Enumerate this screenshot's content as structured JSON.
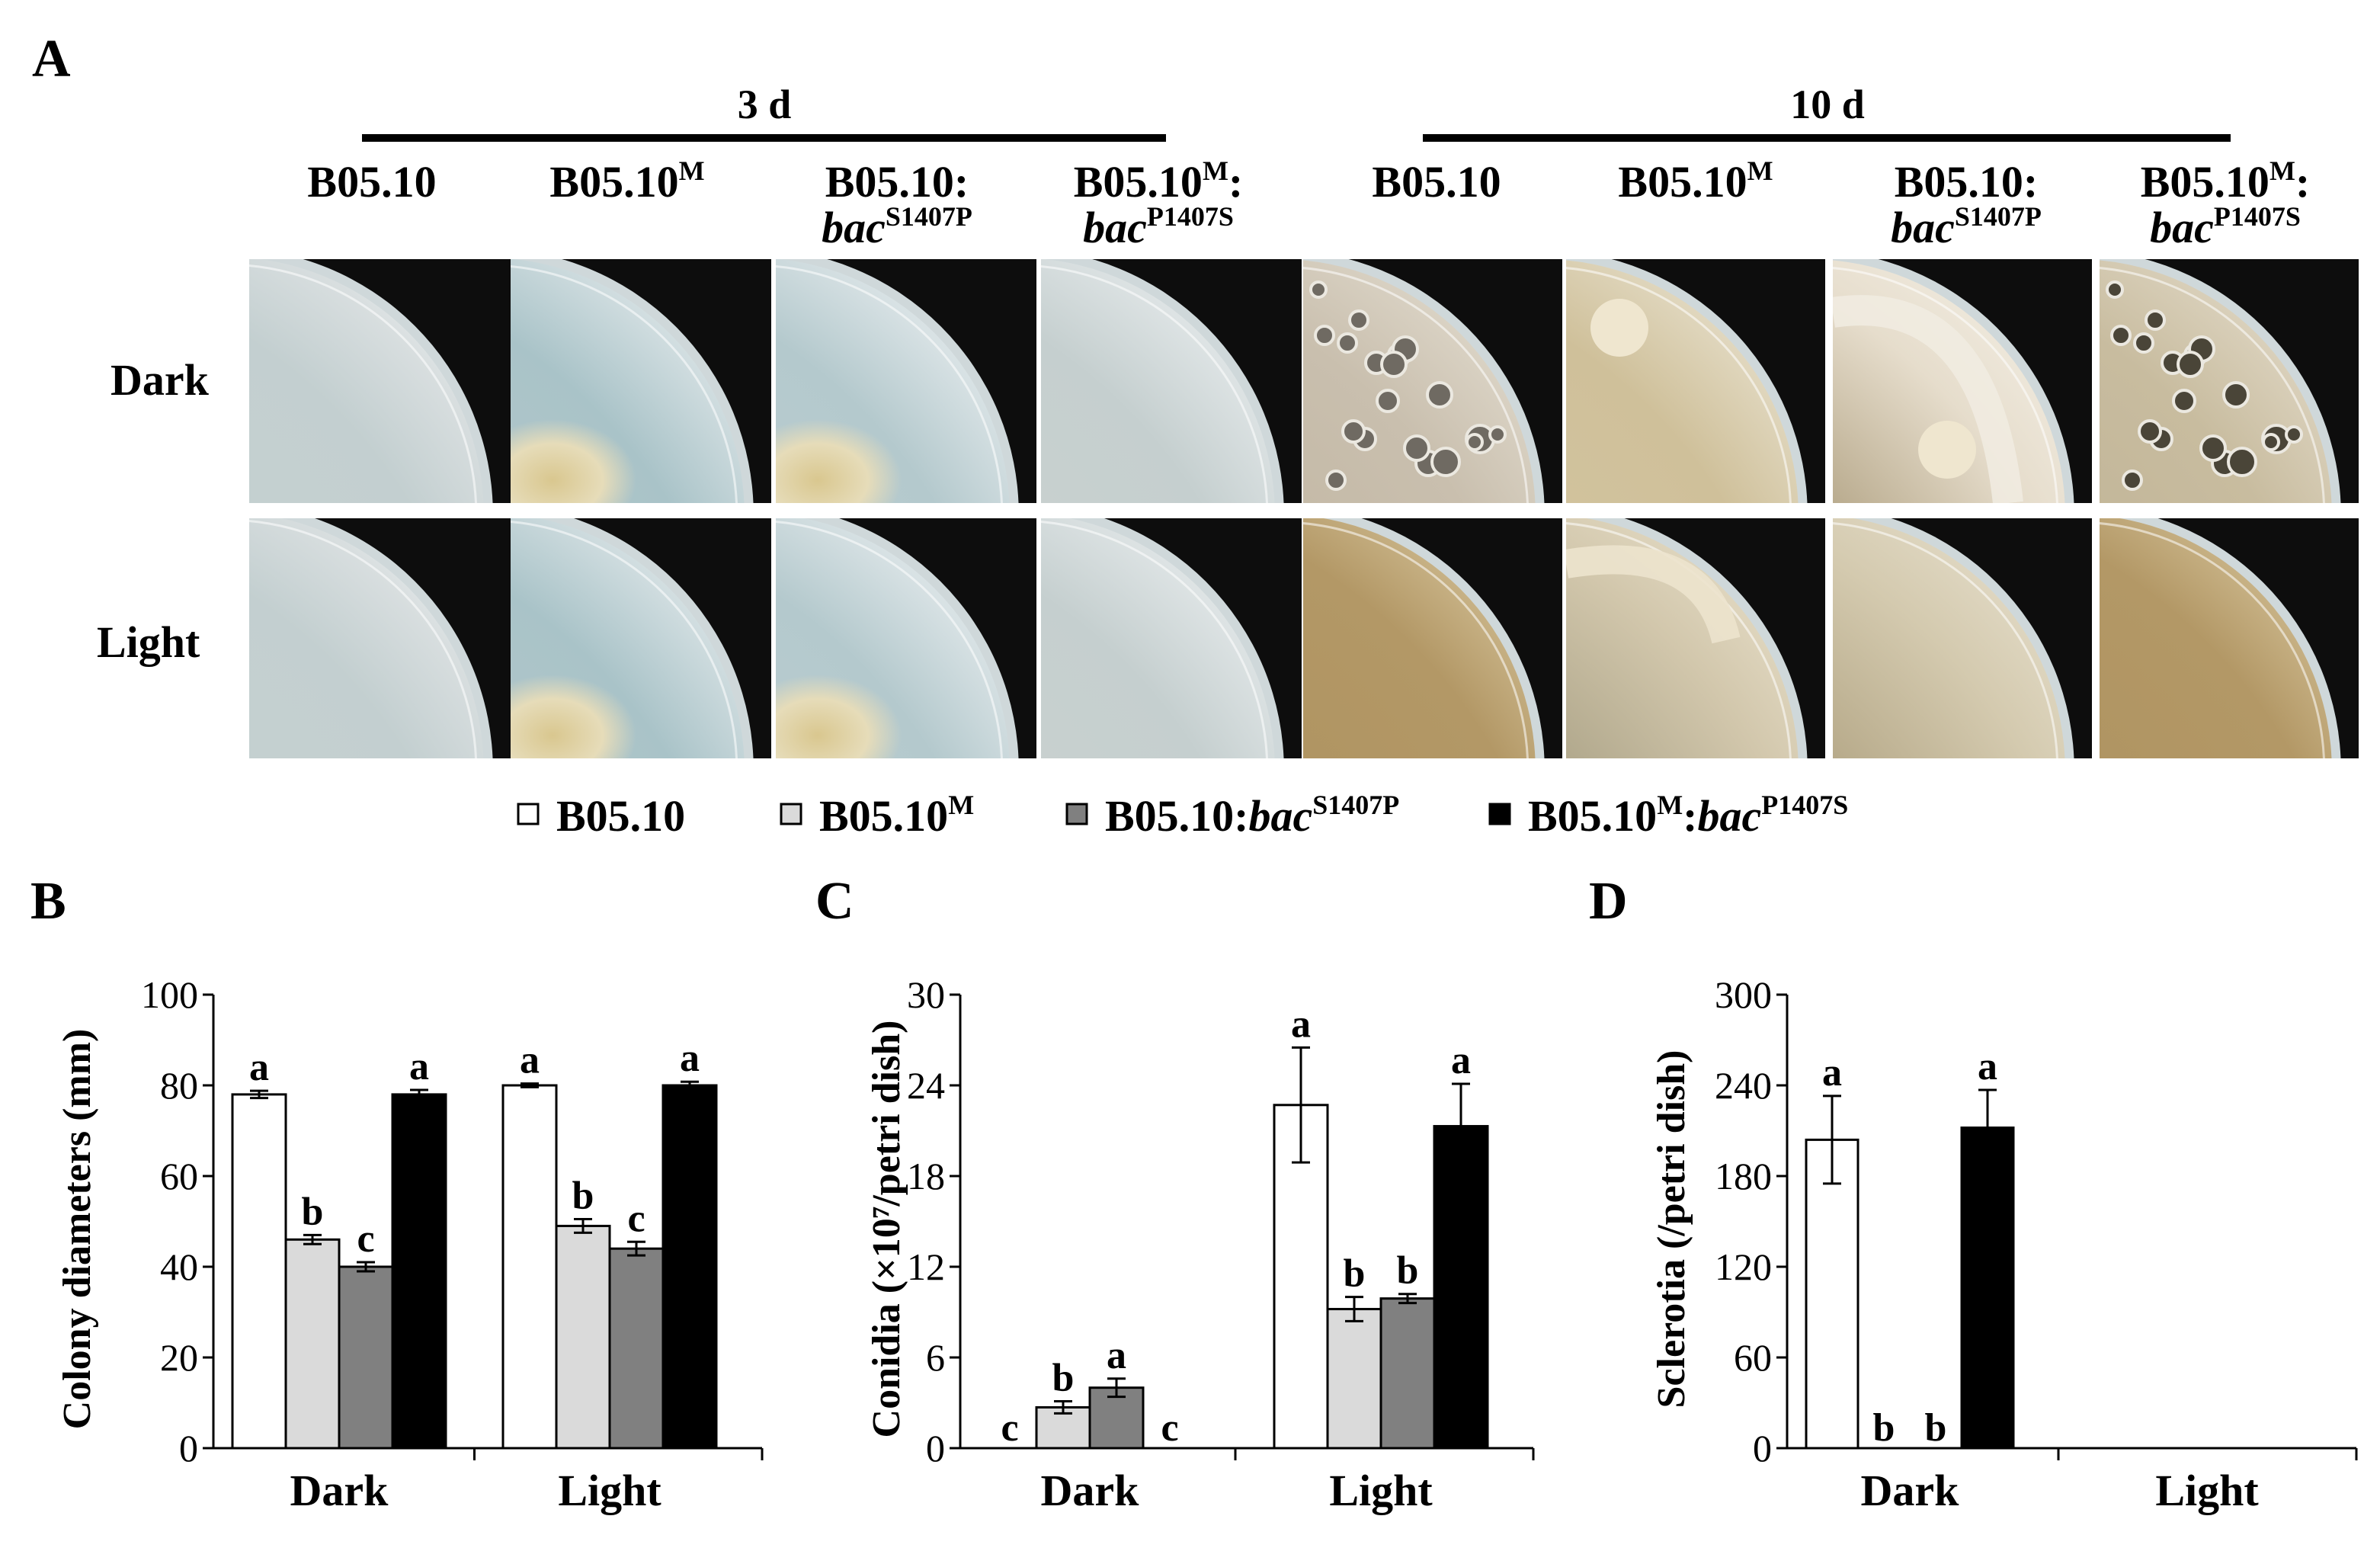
{
  "panel_a": {
    "letter": "A",
    "timepoints": [
      "3 d",
      "10 d"
    ],
    "strains": [
      {
        "name": "B05.10",
        "sup": "",
        "line2": "",
        "line2_sup": ""
      },
      {
        "name": "B05.10",
        "sup": "M",
        "line2": "",
        "line2_sup": ""
      },
      {
        "name": "B05.10:",
        "sup": "",
        "line2": "bac",
        "line2_sup": "S1407P"
      },
      {
        "name": "B05.10",
        "sup": "M",
        "name_tail": ":",
        "line2": "bac",
        "line2_sup": "P1407S"
      }
    ],
    "rows": [
      "Dark",
      "Light"
    ]
  },
  "legend": [
    {
      "name": "B05.10",
      "sup": "",
      "suffix": "",
      "suffix_sup": "",
      "color": "#ffffff"
    },
    {
      "name": "B05.10",
      "sup": "M",
      "suffix": "",
      "suffix_sup": "",
      "color": "#dadada"
    },
    {
      "name": "B05.10:",
      "sup": "",
      "suffix": "bac",
      "suffix_sup": "S1407P",
      "color": "#808080"
    },
    {
      "name": "B05.10",
      "sup": "M",
      "suffix": ":bac",
      "suffix_sup": "P1407S",
      "color": "#000000"
    }
  ],
  "chart_data": [
    {
      "panel": "B",
      "type": "bar",
      "ylabel": "Colony diameters (mm)",
      "ylim": [
        0,
        100
      ],
      "yticks": [
        "0",
        "20",
        "40",
        "60",
        "80",
        "100"
      ],
      "categories": [
        "Dark",
        "Light"
      ],
      "series": [
        {
          "name": "B05.10",
          "values": [
            78,
            80
          ],
          "errors": [
            0.8,
            0.4
          ],
          "letters": [
            "a",
            "a"
          ]
        },
        {
          "name": "B05.10M",
          "values": [
            46,
            49
          ],
          "errors": [
            1.0,
            1.5
          ],
          "letters": [
            "b",
            "b"
          ]
        },
        {
          "name": "B05.10:bacS1407P",
          "values": [
            40,
            44
          ],
          "errors": [
            1.0,
            1.5
          ],
          "letters": [
            "c",
            "c"
          ]
        },
        {
          "name": "B05.10M:bacP1407S",
          "values": [
            78,
            80
          ],
          "errors": [
            1.0,
            0.8
          ],
          "letters": [
            "a",
            "a"
          ]
        }
      ]
    },
    {
      "panel": "C",
      "type": "bar",
      "ylabel": "Conidia (×10⁷/petri dish)",
      "ylim": [
        0,
        30
      ],
      "yticks": [
        "0",
        "6",
        "12",
        "18",
        "24",
        "30"
      ],
      "categories": [
        "Dark",
        "Light"
      ],
      "series": [
        {
          "name": "B05.10",
          "values": [
            0,
            22.7
          ],
          "errors": [
            0,
            3.8
          ],
          "letters": [
            "c",
            "a"
          ]
        },
        {
          "name": "B05.10M",
          "values": [
            2.7,
            9.2
          ],
          "errors": [
            0.4,
            0.8
          ],
          "letters": [
            "b",
            "b"
          ]
        },
        {
          "name": "B05.10:bacS1407P",
          "values": [
            4.0,
            9.9
          ],
          "errors": [
            0.6,
            0.3
          ],
          "letters": [
            "a",
            "b"
          ]
        },
        {
          "name": "B05.10M:bacP1407S",
          "values": [
            0,
            21.3
          ],
          "errors": [
            0,
            2.8
          ],
          "letters": [
            "c",
            "a"
          ]
        }
      ]
    },
    {
      "panel": "D",
      "type": "bar",
      "ylabel": "Sclerotia (/petri dish)",
      "ylim": [
        0,
        300
      ],
      "yticks": [
        "0",
        "60",
        "120",
        "180",
        "240",
        "300"
      ],
      "categories": [
        "Dark",
        "Light"
      ],
      "series": [
        {
          "name": "B05.10",
          "values": [
            204,
            0
          ],
          "errors": [
            29,
            0
          ],
          "letters": [
            "a",
            ""
          ]
        },
        {
          "name": "B05.10M",
          "values": [
            0,
            0
          ],
          "errors": [
            0,
            0
          ],
          "letters": [
            "b",
            ""
          ]
        },
        {
          "name": "B05.10:bacS1407P",
          "values": [
            0,
            0
          ],
          "errors": [
            0,
            0
          ],
          "letters": [
            "b",
            ""
          ]
        },
        {
          "name": "B05.10M:bacP1407S",
          "values": [
            212,
            0
          ],
          "errors": [
            25,
            0
          ],
          "letters": [
            "a",
            ""
          ]
        }
      ]
    }
  ]
}
